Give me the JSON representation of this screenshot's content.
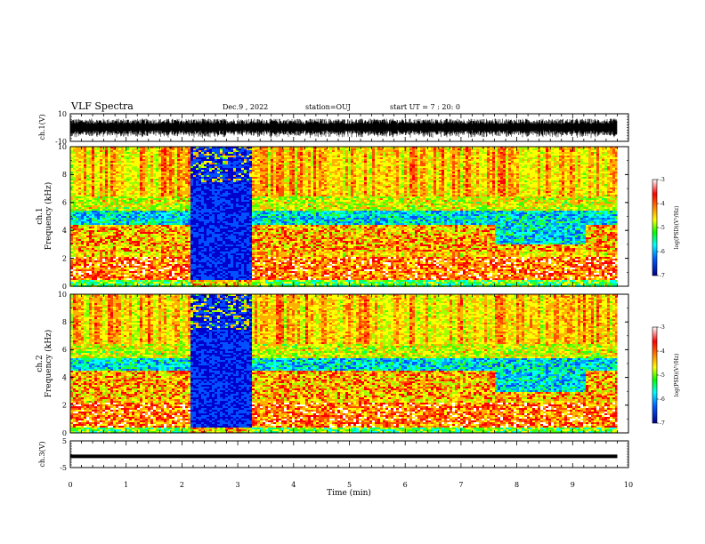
{
  "header": {
    "title": "VLF Spectra",
    "date": "Dec.9 , 2022",
    "station": "station=OUJ",
    "start": "start UT = 7 : 20: 0"
  },
  "chart_data": [
    {
      "type": "line",
      "panel": "ch1-waveform",
      "ylabel": "ch.1(V)",
      "ylim": [
        -10,
        10
      ],
      "yticks": [
        "10",
        "-10"
      ],
      "xlim": [
        0,
        10
      ]
    },
    {
      "type": "heatmap",
      "panel": "ch1-spectrogram",
      "ylabel_line1": "ch.1",
      "ylabel_line2": "Frequency (kHz)",
      "ylim": [
        0,
        10
      ],
      "yticks": [
        "0",
        "2",
        "4",
        "6",
        "8",
        "10"
      ],
      "xlim": [
        0,
        10
      ],
      "data_end_min": 9.8,
      "quiet_gap_min": [
        2.15,
        3.25
      ],
      "colorbar": {
        "label": "log(PSD)(V²/Hz)",
        "range": [
          -7,
          -3
        ],
        "ticks": [
          "-3",
          "-4",
          "-5",
          "-6",
          "-7"
        ]
      }
    },
    {
      "type": "heatmap",
      "panel": "ch2-spectrogram",
      "ylabel_line1": "ch.2",
      "ylabel_line2": "Frequency (kHz)",
      "ylim": [
        0,
        10
      ],
      "yticks": [
        "0",
        "2",
        "4",
        "6",
        "8",
        "10"
      ],
      "xlim": [
        0,
        10
      ],
      "data_end_min": 9.8,
      "quiet_gap_min": [
        2.15,
        3.25
      ],
      "colorbar": {
        "label": "log(PSD)(V²/Hz)",
        "range": [
          -7,
          -3
        ],
        "ticks": [
          "-3",
          "-4",
          "-5",
          "-6",
          "-7"
        ]
      }
    },
    {
      "type": "line",
      "panel": "ch3-waveform",
      "ylabel": "ch.3(V)",
      "ylim": [
        -5,
        5
      ],
      "yticks": [
        "5",
        "-5"
      ],
      "x": [
        0,
        9.8
      ],
      "y": [
        -0.8,
        -0.8
      ],
      "xlim": [
        0,
        10
      ],
      "xlabel": "Time (min)",
      "xticks": [
        "0",
        "1",
        "2",
        "3",
        "4",
        "5",
        "6",
        "7",
        "8",
        "9",
        "10"
      ]
    }
  ]
}
